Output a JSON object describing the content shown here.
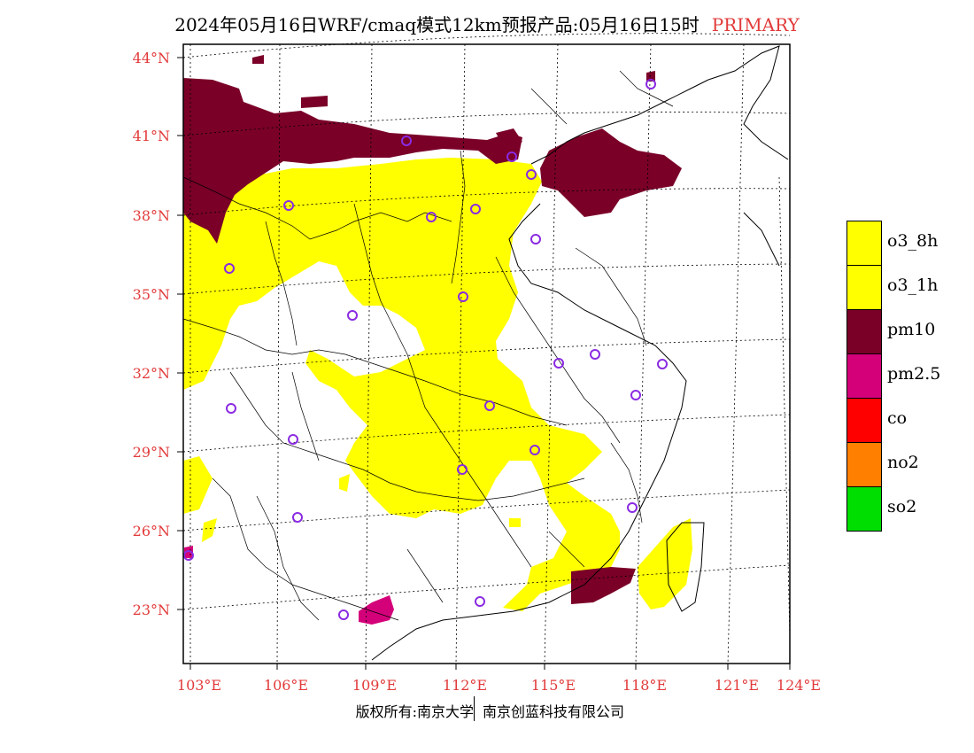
{
  "header": {
    "title": "2024年05月16日WRF/cmaq模式12km预报产品:05月16日15时",
    "primary_label": "PRIMARY"
  },
  "axes": {
    "lat_labels": [
      "44°N",
      "41°N",
      "38°N",
      "35°N",
      "32°N",
      "29°N",
      "26°N",
      "23°N"
    ],
    "lon_labels": [
      "103°E",
      "106°E",
      "109°E",
      "112°E",
      "115°E",
      "118°E",
      "121°E",
      "124°E"
    ]
  },
  "legend": {
    "items": [
      {
        "label": "o3_8h",
        "color": "#ffff00"
      },
      {
        "label": "o3_1h",
        "color": "#ffff00"
      },
      {
        "label": "pm10",
        "color": "#7a0028"
      },
      {
        "label": "pm2.5",
        "color": "#d4007a"
      },
      {
        "label": "co",
        "color": "#ff0000"
      },
      {
        "label": "no2",
        "color": "#ff7f00"
      },
      {
        "label": "so2",
        "color": "#00dd00"
      }
    ]
  },
  "colors": {
    "axis_label": "#e23a3a",
    "station_marker": "#8a2be2",
    "ozone": "#ffff00",
    "pm10": "#7a0028",
    "pm25": "#d4007a"
  },
  "footer": {
    "left_text": "版权所有:南京大学",
    "right_text": "南京创蓝科技有限公司"
  }
}
